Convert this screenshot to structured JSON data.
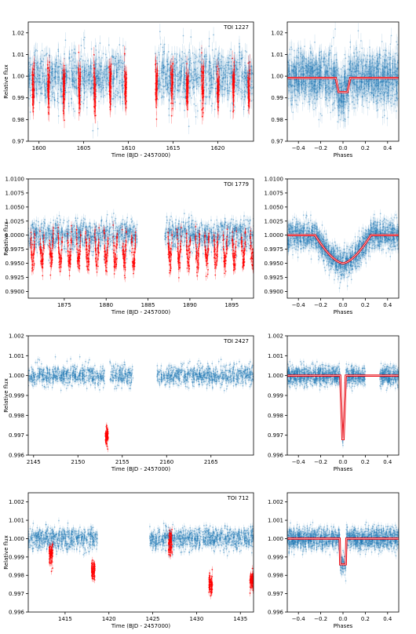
{
  "colors": {
    "data_blue": "#1f77b4",
    "transit_red": "#ff0000",
    "model_red": "#e8000b"
  },
  "chart_data": [
    {
      "type": "scatter",
      "panel": "time",
      "annotation": "TOI 1227",
      "xlabel": "Time (BJD - 2457000)",
      "ylabel": "Relative flux",
      "xlim": [
        1598.8,
        1624.0
      ],
      "ylim": [
        0.97,
        1.025
      ],
      "xticks": [
        1600,
        1605,
        1610,
        1615,
        1620
      ],
      "yticks": [
        0.97,
        0.98,
        0.99,
        1.0,
        1.01,
        1.02
      ],
      "ytick_labels": [
        "0.97",
        "0.98",
        "0.99",
        "1.00",
        "1.01",
        "1.02"
      ],
      "segments": [
        [
          1598.8,
          1609.7
        ],
        [
          1613.0,
          1624.0
        ]
      ],
      "baseline": 1.0,
      "scatter": 0.006,
      "period": 1.724,
      "epoch": 1599.35,
      "transit_halfwidth": 0.12,
      "depth": 0.007
    },
    {
      "type": "scatter",
      "panel": "phase",
      "xlabel": "Phases",
      "ylabel": "",
      "xlim": [
        -0.5,
        0.5
      ],
      "ylim": [
        0.97,
        1.025
      ],
      "xticks": [
        -0.4,
        -0.2,
        0.0,
        0.2,
        0.4
      ],
      "xtick_labels": [
        "−0.4",
        "−0.2",
        "0.0",
        "0.2",
        "0.4"
      ],
      "yticks": [
        0.97,
        0.98,
        0.99,
        1.0,
        1.01,
        1.02
      ],
      "ytick_labels": [
        "0.97",
        "0.98",
        "0.99",
        "1.00",
        "1.01",
        "1.02"
      ],
      "model": {
        "shape": "box",
        "baseline": 0.9992,
        "depth": 0.0065,
        "ingress": 0.065,
        "flat": 0.04
      },
      "scatter": 0.006,
      "gaps": []
    },
    {
      "type": "scatter",
      "panel": "time",
      "annotation": "TOI 1779",
      "xlabel": "Time (BJD - 2457000)",
      "ylabel": "Relative flux",
      "xlim": [
        1870.7,
        1897.6
      ],
      "ylim": [
        0.9888,
        1.01
      ],
      "xticks": [
        1875,
        1880,
        1885,
        1890,
        1895
      ],
      "yticks": [
        0.99,
        0.9925,
        0.995,
        0.9975,
        1.0,
        1.0025,
        1.005,
        1.0075,
        1.01
      ],
      "ytick_labels": [
        "0.9900",
        "0.9925",
        "0.9950",
        "0.9975",
        "1.0000",
        "1.0025",
        "1.0050",
        "1.0075",
        "1.0100"
      ],
      "segments": [
        [
          1870.7,
          1883.7
        ],
        [
          1887.0,
          1897.6
        ]
      ],
      "baseline": 1.0,
      "scatter": 0.0013,
      "period": 1.093,
      "epoch": 1871.25,
      "transit_halfwidth": 0.26,
      "depth": 0.0045
    },
    {
      "type": "scatter",
      "panel": "phase",
      "xlabel": "Phases",
      "ylabel": "",
      "xlim": [
        -0.5,
        0.5
      ],
      "ylim": [
        0.9888,
        1.01
      ],
      "xticks": [
        -0.4,
        -0.2,
        0.0,
        0.2,
        0.4
      ],
      "xtick_labels": [
        "−0.4",
        "−0.2",
        "0.0",
        "0.2",
        "0.4"
      ],
      "yticks": [
        0.99,
        0.9925,
        0.995,
        0.9975,
        1.0,
        1.0025,
        1.005,
        1.0075,
        1.01
      ],
      "ytick_labels": [
        "0.9900",
        "0.9925",
        "0.9950",
        "0.9975",
        "1.0000",
        "1.0025",
        "1.0050",
        "1.0075",
        "1.0100"
      ],
      "model": {
        "shape": "v",
        "baseline": 1.0,
        "depth": 0.005,
        "halfwidth": 0.25
      },
      "scatter": 0.0013,
      "gaps": []
    },
    {
      "type": "scatter",
      "panel": "time",
      "annotation": "TOI 2427",
      "xlabel": "Time (BJD - 2457000)",
      "ylabel": "Relative flux",
      "xlim": [
        2144.4,
        2169.8
      ],
      "ylim": [
        0.996,
        1.002
      ],
      "xticks": [
        2145,
        2150,
        2155,
        2160,
        2165
      ],
      "yticks": [
        0.996,
        0.997,
        0.998,
        0.999,
        1.0,
        1.001,
        1.002
      ],
      "ytick_labels": [
        "0.996",
        "0.997",
        "0.998",
        "0.999",
        "1.000",
        "1.001",
        "1.002"
      ],
      "segments": [
        [
          2144.4,
          2153.0
        ],
        [
          2153.6,
          2156.2
        ],
        [
          2158.9,
          2169.8
        ]
      ],
      "baseline": 1.0,
      "scatter": 0.00025,
      "transits": [
        {
          "x": 2153.25,
          "halfwidth": 0.15,
          "flux_center": 0.997
        }
      ]
    },
    {
      "type": "scatter",
      "panel": "phase",
      "xlabel": "Phases",
      "ylabel": "",
      "xlim": [
        -0.5,
        0.5
      ],
      "ylim": [
        0.996,
        1.002
      ],
      "xticks": [
        -0.4,
        -0.2,
        0.0,
        0.2,
        0.4
      ],
      "xtick_labels": [
        "−0.4",
        "−0.2",
        "0.0",
        "0.2",
        "0.4"
      ],
      "yticks": [
        0.996,
        0.997,
        0.998,
        0.999,
        1.0,
        1.001,
        1.002
      ],
      "ytick_labels": [
        "0.996",
        "0.997",
        "0.998",
        "0.999",
        "1.000",
        "1.001",
        "1.002"
      ],
      "model": {
        "shape": "box",
        "baseline": 1.0,
        "depth": 0.0032,
        "ingress": 0.025,
        "flat": 0.005
      },
      "scatter": 0.00025,
      "gaps": [
        [
          0.2,
          0.33
        ]
      ]
    },
    {
      "type": "scatter",
      "panel": "time",
      "annotation": "TOI 712",
      "xlabel": "Time (BJD - 2457000)",
      "ylabel": "Relative flux",
      "xlim": [
        1410.8,
        1436.5
      ],
      "ylim": [
        0.996,
        1.0025
      ],
      "xticks": [
        1415,
        1420,
        1425,
        1430,
        1435
      ],
      "yticks": [
        0.996,
        0.997,
        0.998,
        0.999,
        1.0,
        1.001,
        1.002
      ],
      "ytick_labels": [
        "0.996",
        "0.997",
        "0.998",
        "0.999",
        "1.000",
        "1.001",
        "1.002"
      ],
      "segments": [
        [
          1410.8,
          1418.7
        ],
        [
          1424.6,
          1436.5
        ]
      ],
      "baseline": 1.0,
      "scatter": 0.0003,
      "transits": [
        {
          "x": 1413.4,
          "halfwidth": 0.2,
          "flux_center": 0.9992
        },
        {
          "x": 1418.2,
          "halfwidth": 0.2,
          "flux_center": 0.9983
        },
        {
          "x": 1427.0,
          "halfwidth": 0.2,
          "flux_center": 0.9998
        },
        {
          "x": 1431.6,
          "halfwidth": 0.2,
          "flux_center": 0.9975
        },
        {
          "x": 1436.3,
          "halfwidth": 0.2,
          "flux_center": 0.9977
        }
      ]
    },
    {
      "type": "scatter",
      "panel": "phase",
      "xlabel": "Phases",
      "ylabel": "",
      "xlim": [
        -0.5,
        0.5
      ],
      "ylim": [
        0.996,
        1.0025
      ],
      "xticks": [
        -0.4,
        -0.2,
        0.0,
        0.2,
        0.4
      ],
      "xtick_labels": [
        "−0.4",
        "−0.2",
        "0.0",
        "0.2",
        "0.4"
      ],
      "yticks": [
        0.996,
        0.997,
        0.998,
        0.999,
        1.0,
        1.001,
        1.002
      ],
      "ytick_labels": [
        "0.996",
        "0.997",
        "0.998",
        "0.999",
        "1.000",
        "1.001",
        "1.002"
      ],
      "model": {
        "shape": "box",
        "baseline": 1.0,
        "depth": 0.0014,
        "ingress": 0.03,
        "flat": 0.025
      },
      "scatter": 0.0003,
      "gaps": []
    }
  ]
}
